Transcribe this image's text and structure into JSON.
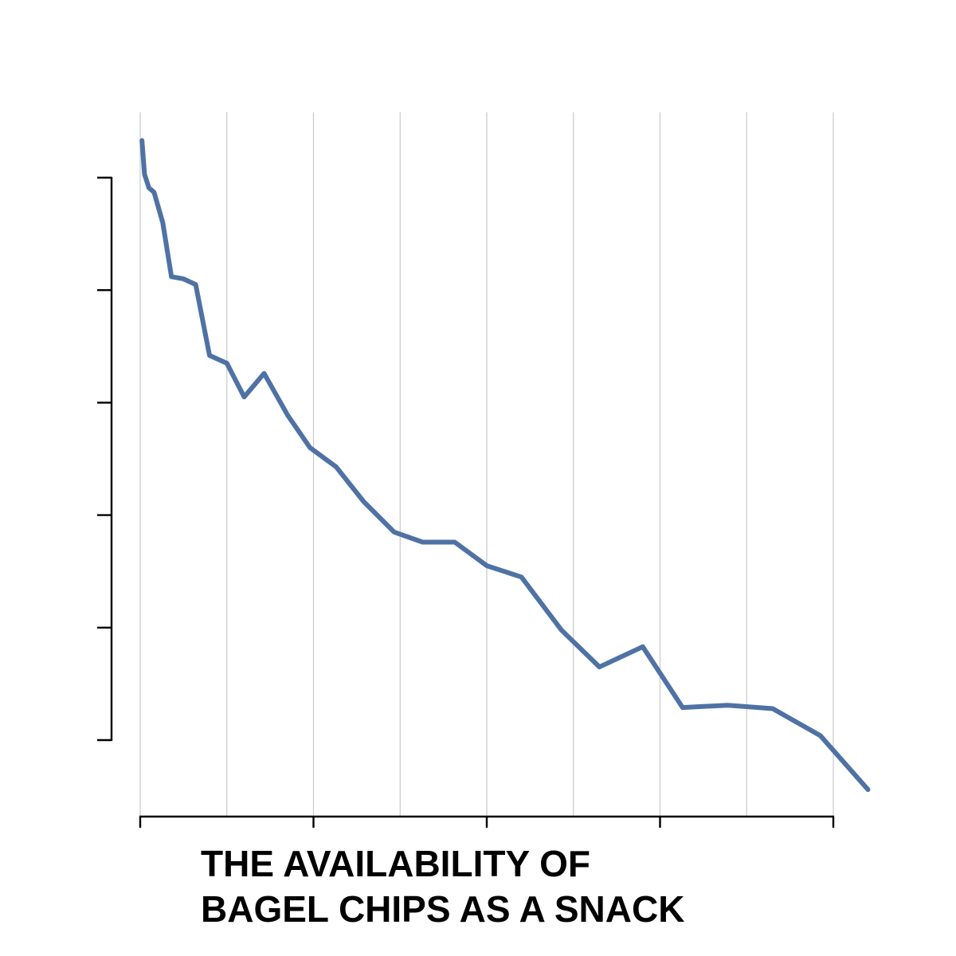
{
  "chart_data": {
    "type": "line",
    "title": "",
    "ylabel": "",
    "xlabel_lines": [
      "THE AVAILABILITY OF",
      "BAGEL CHIPS AS A SNACK"
    ],
    "xlim": [
      0,
      8.4
    ],
    "ylim": [
      -0.63,
      5.32
    ],
    "x_major_ticks": [
      0,
      2,
      4,
      6,
      8
    ],
    "x_grid": [
      0,
      1,
      2,
      3,
      4,
      5,
      6,
      7,
      8
    ],
    "y_ticks": [
      0,
      1,
      2,
      3,
      4,
      5
    ],
    "grid": "vertical",
    "legend": "none",
    "line_color": "#4f72a5",
    "series": [
      {
        "x": [
          0.02,
          0.05,
          0.1,
          0.16,
          0.26,
          0.36,
          0.5,
          0.64,
          0.8,
          1.0,
          1.2,
          1.43,
          1.7,
          1.96,
          2.26,
          2.58,
          2.93,
          3.26,
          3.63,
          4.0,
          4.4,
          4.86,
          5.3,
          5.8,
          6.26,
          6.78,
          7.3,
          7.85,
          8.4
        ],
        "y": [
          5.33,
          5.03,
          4.91,
          4.87,
          4.6,
          4.12,
          4.1,
          4.05,
          3.42,
          3.35,
          3.05,
          3.26,
          2.89,
          2.6,
          2.43,
          2.12,
          1.85,
          1.76,
          1.76,
          1.55,
          1.45,
          0.98,
          0.65,
          0.83,
          0.29,
          0.31,
          0.28,
          0.04,
          -0.44
        ]
      }
    ]
  }
}
